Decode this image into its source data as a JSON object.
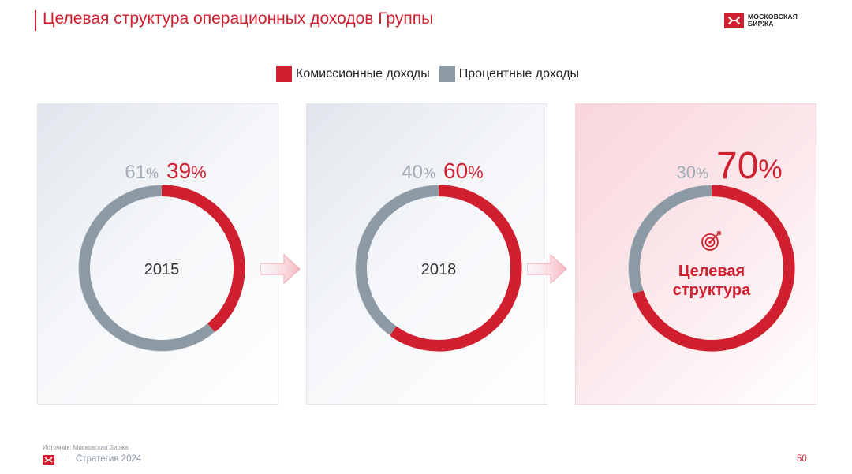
{
  "header": {
    "title": "Целевая структура операционных доходов Группы",
    "logo_text": "МОСКОВСКАЯ БИРЖА"
  },
  "colors": {
    "commission": "#d0202f",
    "interest": "#8c9aa6",
    "interest_label": "#a2acb6"
  },
  "chart_data": {
    "type": "pie",
    "style": "donut",
    "legend": {
      "placement": "top-center",
      "entries": [
        "Комиссионные доходы",
        "Процентные доходы"
      ]
    },
    "panels": [
      {
        "center_label": "2015",
        "slices": [
          {
            "name": "Комиссионные доходы",
            "value": 39,
            "label": "39"
          },
          {
            "name": "Процентные доходы",
            "value": 61,
            "label": "61"
          }
        ]
      },
      {
        "center_label": "2018",
        "slices": [
          {
            "name": "Комиссионные доходы",
            "value": 60,
            "label": "60"
          },
          {
            "name": "Процентные доходы",
            "value": 40,
            "label": "40"
          }
        ]
      },
      {
        "center_label": "Целевая структура",
        "center_label_lines": [
          "Целевая",
          "структура"
        ],
        "center_icon": "target-icon",
        "slices": [
          {
            "name": "Комиссионные доходы",
            "value": 70,
            "label": "70"
          },
          {
            "name": "Процентные доходы",
            "value": 30,
            "label": "30"
          }
        ]
      }
    ],
    "percent_sign": "%"
  },
  "footer": {
    "source": "Источник: Московская Биржа",
    "separator": "I",
    "strategy": "Стратегия 2024",
    "page": "50"
  }
}
